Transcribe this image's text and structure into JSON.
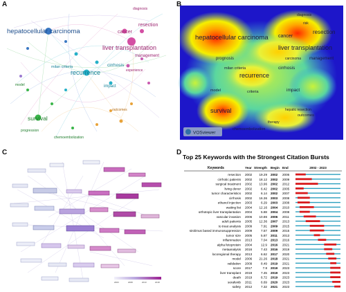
{
  "panels": {
    "a": {
      "letter": "A",
      "labels": {
        "hcc": "hepatocellular carcinoma",
        "lt": "liver transplantation",
        "recurrence": "recurrence",
        "survival": "survival",
        "cancer": "cancer",
        "resection": "resection",
        "management": "management",
        "cirrhosis": "cirrhosis",
        "impact": "impact",
        "milan": "milan criteria",
        "diagnosis": "diagnosis",
        "experience": "experience",
        "outcomes": "outcomes",
        "model": "model",
        "progression": "progression",
        "chemo": "chemoembolization"
      }
    },
    "b": {
      "letter": "B",
      "labels": {
        "hcc": "hepatocellular carcinoma",
        "lt": "liver transplantation",
        "recurrence": "recurrence",
        "survival": "survival",
        "cancer": "cancer",
        "resection": "resection",
        "management": "management",
        "cirrhosis": "cirrhosis",
        "impact": "impact",
        "milan": "milan criteria",
        "diagnosis": "diagnosis",
        "prognosis": "prognosis",
        "criteria": "criteria",
        "model": "model",
        "outcomes": "outcomes",
        "chemo": "chemoembolization",
        "hepatic": "hepatic resection",
        "risk": "risk",
        "carcinoma": "carcinoma",
        "therapy": "therapy"
      },
      "watermark": "VOSviewer"
    },
    "c": {
      "letter": "C",
      "timeline_ticks": [
        "2003",
        "2008",
        "2013",
        "2018"
      ]
    },
    "d": {
      "letter": "D"
    }
  },
  "chart_data": {
    "type": "table",
    "title": "Top 25 Keywords with the Strongest Citation Bursts",
    "columns": [
      "Keywords",
      "Year",
      "Strength",
      "Begin",
      "End",
      "2002 - 2023"
    ],
    "range": [
      2002,
      2023
    ],
    "rows": [
      {
        "keyword": "resection",
        "year": 2002,
        "strength": "19.29",
        "begin": 2002,
        "end": 2006
      },
      {
        "keyword": "cirrhotic patients",
        "year": 2002,
        "strength": "18.12",
        "begin": 2002,
        "end": 2009
      },
      {
        "keyword": "surgical treatment",
        "year": 2002,
        "strength": "13.96",
        "begin": 2002,
        "end": 2012
      },
      {
        "keyword": "living donor",
        "year": 2002,
        "strength": "6.42",
        "begin": 2002,
        "end": 2005
      },
      {
        "keyword": "tumor characteristics",
        "year": 2002,
        "strength": "6.14",
        "begin": 2002,
        "end": 2007
      },
      {
        "keyword": "cirrhosis",
        "year": 2002,
        "strength": "16.36",
        "begin": 2003,
        "end": 2008
      },
      {
        "keyword": "ethanol injection",
        "year": 2003,
        "strength": "6.29",
        "begin": 2003,
        "end": 2008
      },
      {
        "keyword": "waiting list",
        "year": 2004,
        "strength": "12.16",
        "begin": 2004,
        "end": 2010
      },
      {
        "keyword": "orthotopic liver transplantation",
        "year": 2004,
        "strength": "5.88",
        "begin": 2004,
        "end": 2008
      },
      {
        "keyword": "vascular invasion",
        "year": 2006,
        "strength": "10.86",
        "begin": 2006,
        "end": 2011
      },
      {
        "keyword": "adult patients",
        "year": 2005,
        "strength": "12.36",
        "begin": 2007,
        "end": 2013
      },
      {
        "keyword": "to treat analysis",
        "year": 2009,
        "strength": "7.91",
        "begin": 2009,
        "end": 2015
      },
      {
        "keyword": "sirolimus based immunosuppression",
        "year": 2009,
        "strength": "7.57",
        "begin": 2009,
        "end": 2015
      },
      {
        "keyword": "tumor size",
        "year": 2005,
        "strength": "5.87",
        "begin": 2011,
        "end": 2013
      },
      {
        "keyword": "inflammation",
        "year": 2013,
        "strength": "7.04",
        "begin": 2013,
        "end": 2016
      },
      {
        "keyword": "alpha fetoprotein",
        "year": 2004,
        "strength": "12.9",
        "begin": 2016,
        "end": 2021
      },
      {
        "keyword": "metaanalysis",
        "year": 2016,
        "strength": "7.43",
        "begin": 2016,
        "end": 2019
      },
      {
        "keyword": "locoregional therapy",
        "year": 2013,
        "strength": "6.62",
        "begin": 2017,
        "end": 2020
      },
      {
        "keyword": "model",
        "year": 2006,
        "strength": "21.26",
        "begin": 2018,
        "end": 2021
      },
      {
        "keyword": "validation",
        "year": 2009,
        "strength": "8.49",
        "begin": 2019,
        "end": 2021
      },
      {
        "keyword": "score",
        "year": 2017,
        "strength": "7.8",
        "begin": 2019,
        "end": 2023
      },
      {
        "keyword": "liver transplant",
        "year": 2019,
        "strength": "7.45",
        "begin": 2019,
        "end": 2023
      },
      {
        "keyword": "death",
        "year": 2019,
        "strength": "6.72",
        "begin": 2019,
        "end": 2023
      },
      {
        "keyword": "sorafenib",
        "year": 2011,
        "strength": "6.69",
        "begin": 2020,
        "end": 2023
      },
      {
        "keyword": "safety",
        "year": 2012,
        "strength": "7.32",
        "begin": 2021,
        "end": 2023
      }
    ]
  },
  "colors": {
    "burst": "#d7191c",
    "baseline": "#2b9fbf",
    "header_rule": "#000000"
  }
}
